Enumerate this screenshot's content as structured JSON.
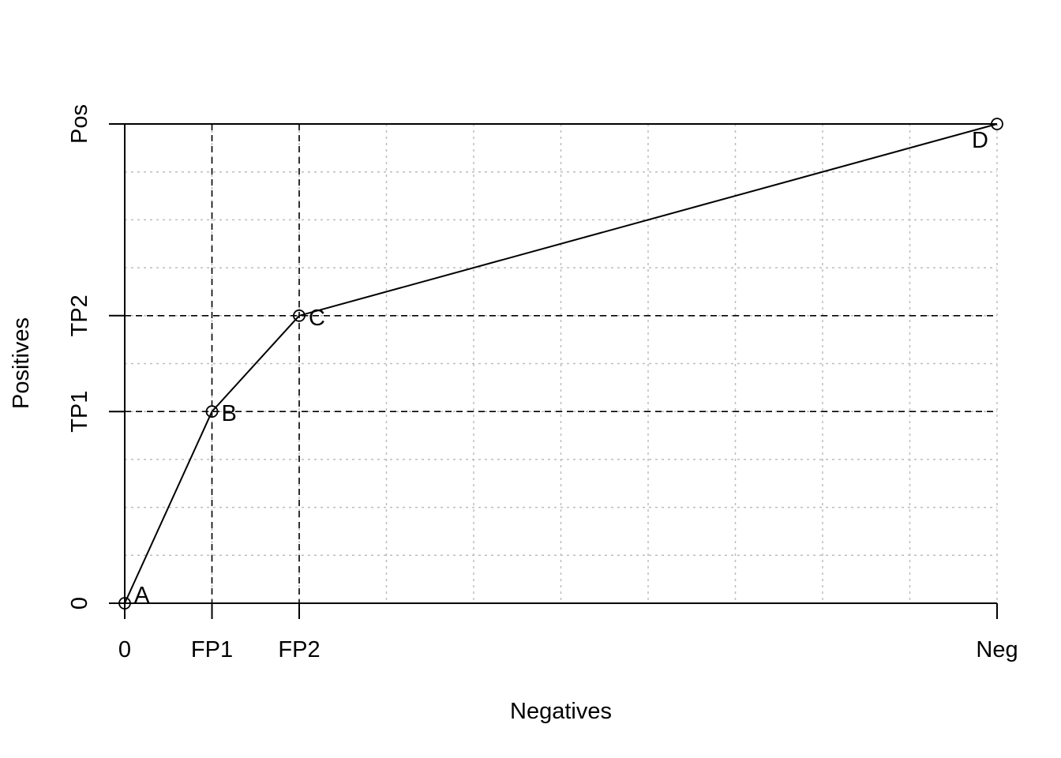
{
  "chart_data": {
    "type": "line",
    "title": "",
    "xlabel": "Negatives",
    "ylabel": "Positives",
    "xlim": [
      0,
      1
    ],
    "ylim": [
      0,
      1
    ],
    "x_ticks": [
      {
        "value": 0,
        "label": "0"
      },
      {
        "value": 0.1,
        "label": "FP1"
      },
      {
        "value": 0.2,
        "label": "FP2"
      },
      {
        "value": 1,
        "label": "Neg"
      }
    ],
    "y_ticks": [
      {
        "value": 0,
        "label": "0"
      },
      {
        "value": 0.4,
        "label": "TP1"
      },
      {
        "value": 0.6,
        "label": "TP2"
      },
      {
        "value": 1,
        "label": "Pos"
      }
    ],
    "grid": {
      "x_step": 0.1,
      "y_step": 0.1,
      "style": "dotted"
    },
    "reference_lines": {
      "vertical": [
        0.1,
        0.2
      ],
      "horizontal": [
        0.4,
        0.6
      ],
      "style": "dashed"
    },
    "series": [
      {
        "values": [
          {
            "label": "A",
            "x": 0,
            "y": 0
          },
          {
            "label": "B",
            "x": 0.1,
            "y": 0.4
          },
          {
            "label": "C",
            "x": 0.2,
            "y": 0.6
          },
          {
            "label": "D",
            "x": 1,
            "y": 1
          }
        ]
      }
    ]
  }
}
